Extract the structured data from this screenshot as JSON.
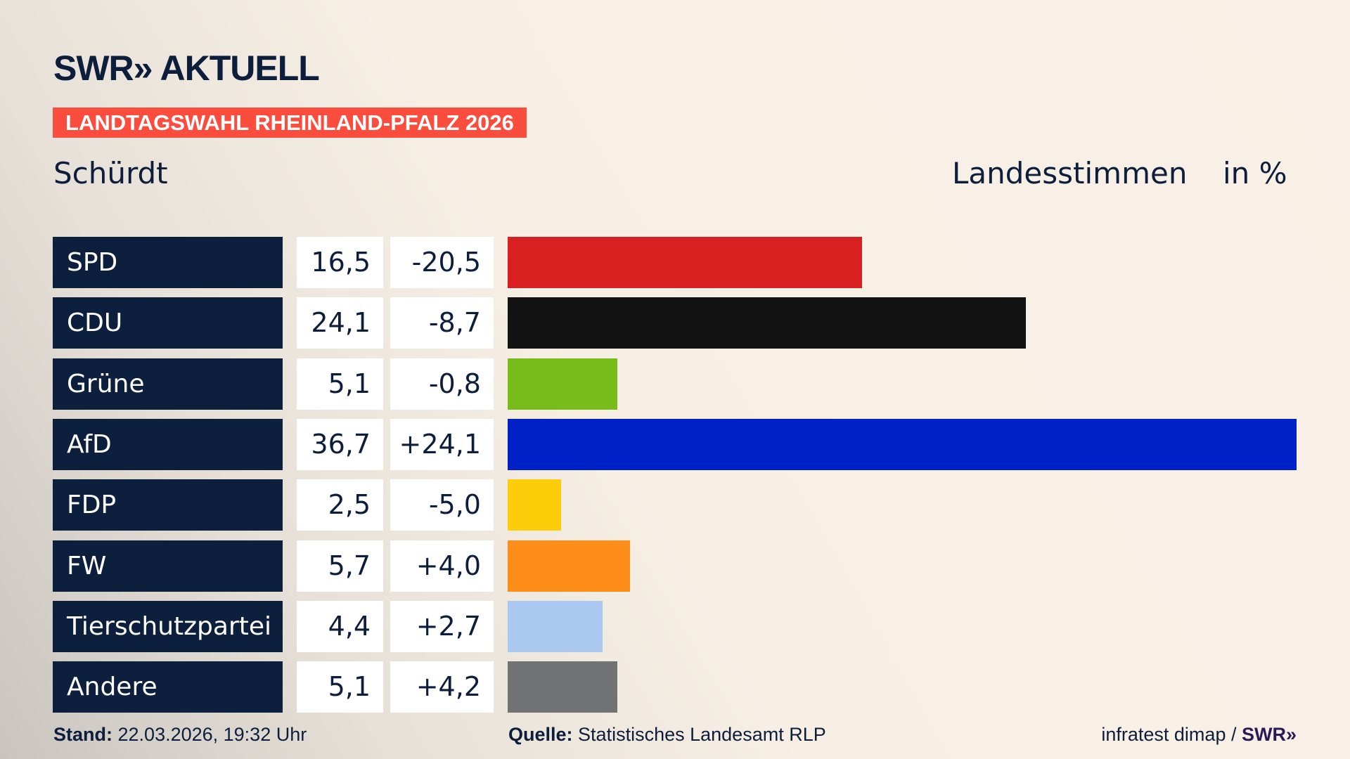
{
  "header": {
    "logo": "SWR» AKTUELL",
    "banner": "LANDTAGSWAHL RHEINLAND-PFALZ 2026",
    "place": "Schürdt",
    "measure": "Landesstimmen",
    "unit": "in %"
  },
  "colors": {
    "banner": "#fb4d3d",
    "label_bg": "#0c1f3d"
  },
  "chart_data": {
    "type": "bar",
    "orientation": "horizontal",
    "xlim": [
      0,
      36.7
    ],
    "categories": [
      "SPD",
      "CDU",
      "Grüne",
      "AfD",
      "FDP",
      "FW",
      "Tierschutzpartei",
      "Andere"
    ],
    "values": [
      16.5,
      24.1,
      5.1,
      36.7,
      2.5,
      5.7,
      4.4,
      5.1
    ],
    "value_labels": [
      "16,5",
      "24,1",
      "5,1",
      "36,7",
      "2,5",
      "5,7",
      "4,4",
      "5,1"
    ],
    "diff_labels": [
      "-20,5",
      "-8,7",
      "-0,8",
      "+24,1",
      "-5,0",
      "+4,0",
      "+2,7",
      "+4,2"
    ],
    "colors": [
      "#d82020",
      "#121212",
      "#78bc1b",
      "#0021c8",
      "#fdcd0a",
      "#fd8e19",
      "#abc8f0",
      "#717274"
    ]
  },
  "footer": {
    "stand_label": "Stand:",
    "stand_value": "22.03.2026, 19:32 Uhr",
    "source_label": "Quelle:",
    "source_value": "Statistisches Landesamt RLP",
    "credit": "infratest dimap /",
    "credit_logo": "SWR»"
  }
}
